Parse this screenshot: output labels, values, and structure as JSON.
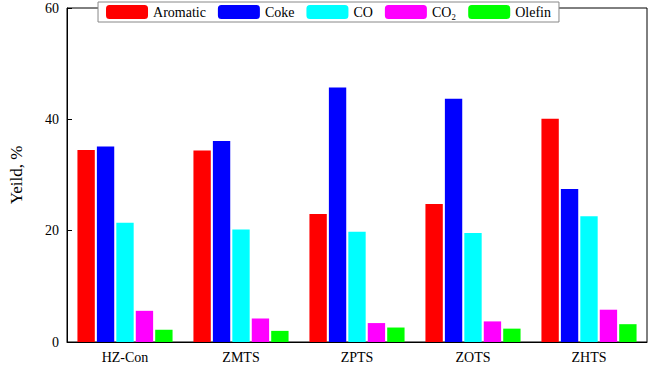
{
  "chart_data": {
    "type": "bar",
    "y_label": "Yeild, %",
    "categories": [
      "HZ-Con",
      "ZMTS",
      "ZPTS",
      "ZOTS",
      "ZHTS"
    ],
    "series": [
      {
        "name": "Aromatic",
        "color": "#ff0000",
        "values": [
          34.5,
          34.4,
          23.0,
          24.8,
          40.1
        ]
      },
      {
        "name": "Coke",
        "color": "#0000ff",
        "values": [
          35.1,
          36.1,
          45.7,
          43.7,
          27.5
        ]
      },
      {
        "name": "CO",
        "color": "#00ffff",
        "values": [
          21.4,
          20.2,
          19.8,
          19.6,
          22.6
        ]
      },
      {
        "name": "CO₂",
        "color": "#ff00ff",
        "values": [
          5.6,
          4.2,
          3.4,
          3.7,
          5.8
        ]
      },
      {
        "name": "Olefin",
        "color": "#00ff00",
        "values": [
          2.2,
          2.0,
          2.6,
          2.4,
          3.2
        ]
      }
    ],
    "ylim": [
      0,
      60
    ],
    "yticks": [
      0,
      20,
      40,
      60
    ],
    "grid": false,
    "legend": "top"
  }
}
